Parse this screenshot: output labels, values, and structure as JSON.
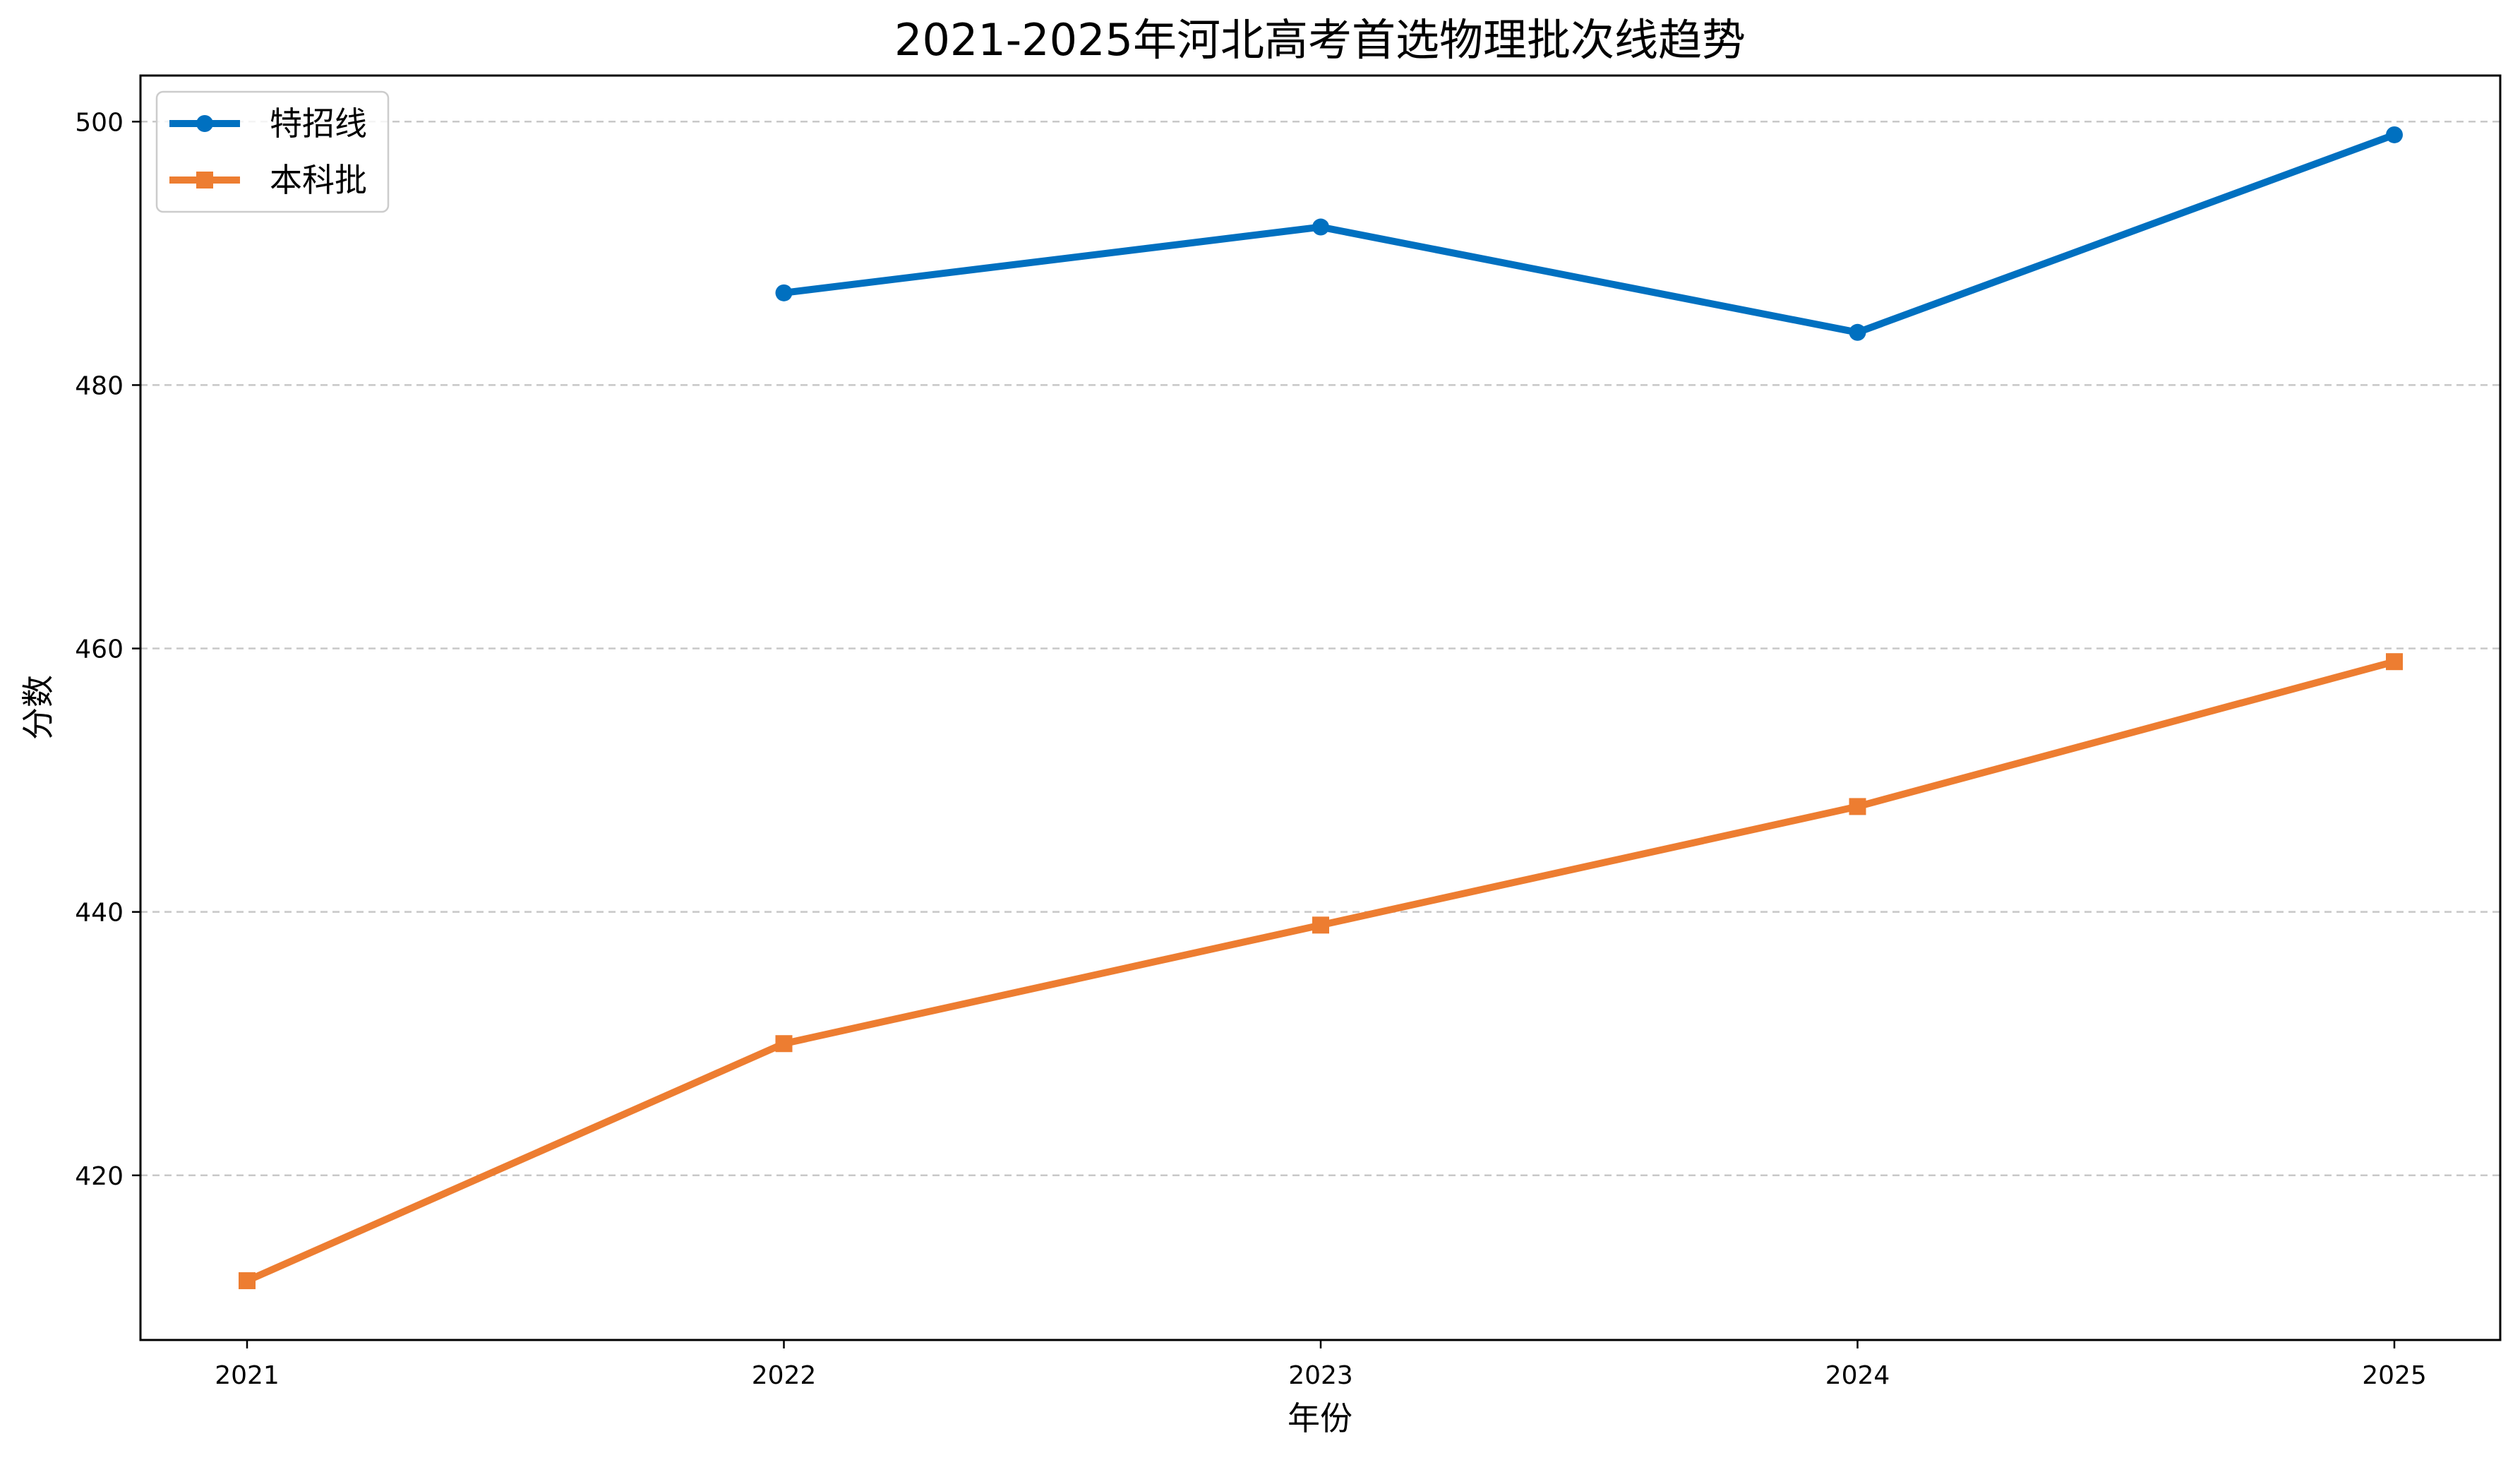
{
  "chart_data": {
    "type": "line",
    "title": "2021-2025年河北高考首选物理批次线趋势",
    "xlabel": "年份",
    "ylabel": "分数",
    "categories": [
      "2021",
      "2022",
      "2023",
      "2024",
      "2025"
    ],
    "yticks": [
      "420",
      "440",
      "460",
      "480",
      "500"
    ],
    "ylim": [
      407.5,
      503.5
    ],
    "grid": "y-dashed",
    "legend_position": "top-left",
    "series": [
      {
        "name": "特招线",
        "values": [
          null,
          487,
          492,
          484,
          499
        ],
        "color": "#0070c0",
        "marker": "circle"
      },
      {
        "name": "本科批",
        "values": [
          412,
          430,
          439,
          448,
          459
        ],
        "color": "#ed7d31",
        "marker": "square"
      }
    ]
  }
}
